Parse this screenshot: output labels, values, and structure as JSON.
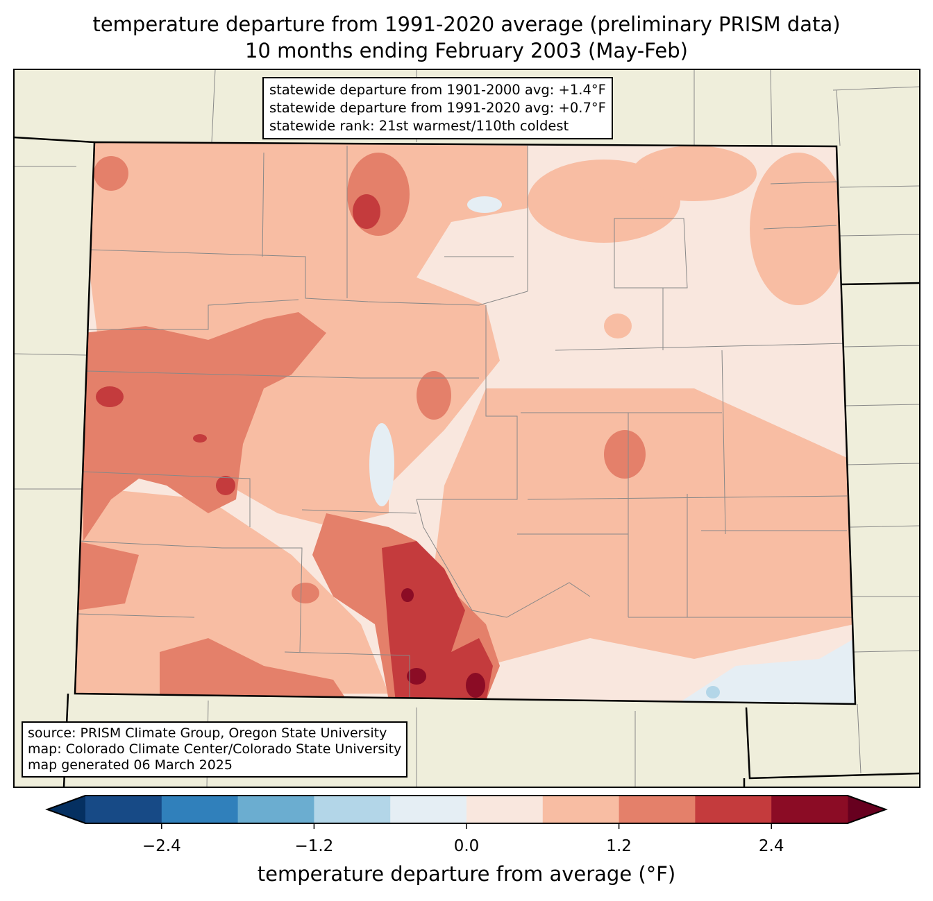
{
  "title": {
    "line1": "temperature departure from 1991-2020 average (preliminary PRISM data)",
    "line2": "10 months ending February 2003 (May-Feb)"
  },
  "stats": {
    "line1": "statewide departure from 1901-2000 avg: +1.4°F",
    "line2": "statewide departure from 1991-2020 avg: +0.7°F",
    "line3": "statewide rank: 21st warmest/110th coldest"
  },
  "source": {
    "line1": "source: PRISM Climate Group, Oregon State University",
    "line2": "map: Colorado Climate Center/Colorado State University",
    "line3": "map generated 06 March 2025"
  },
  "colorbar": {
    "label": "temperature departure from average (°F)",
    "bounds": [
      -3.0,
      -2.4,
      -1.8,
      -1.2,
      -0.6,
      0.0,
      0.6,
      1.2,
      1.8,
      2.4,
      3.0
    ],
    "colors": [
      "#174a86",
      "#3080bb",
      "#6badd0",
      "#b3d6e8",
      "#e5eef4",
      "#f9e7de",
      "#f8bda3",
      "#e4806a",
      "#c43b3d",
      "#8b0c25"
    ],
    "under_color": "#053061",
    "over_color": "#67001f",
    "ticks": [
      "−2.4",
      "−1.2",
      "0.0",
      "1.2",
      "2.4"
    ],
    "tick_values": [
      -2.4,
      -1.2,
      0.0,
      1.2,
      2.4
    ]
  },
  "map_colors": {
    "land": "#efeedb",
    "background_state": "#f9e7de"
  }
}
